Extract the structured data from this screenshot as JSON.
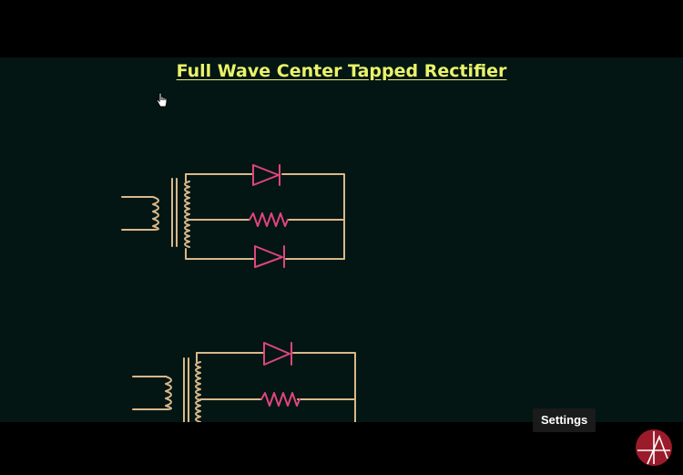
{
  "video": {
    "title": "Full Wave Center Tapped Rectifier"
  },
  "player": {
    "tooltip": "Settings"
  },
  "colors": {
    "background": "#031614",
    "title": "#eaf36a",
    "wire": "#d9b88a",
    "diode": "#e0457b",
    "resistor": "#e0457b"
  },
  "icons": {
    "cursor": "hand-pointer-icon",
    "logo": "channel-logo-icon"
  }
}
